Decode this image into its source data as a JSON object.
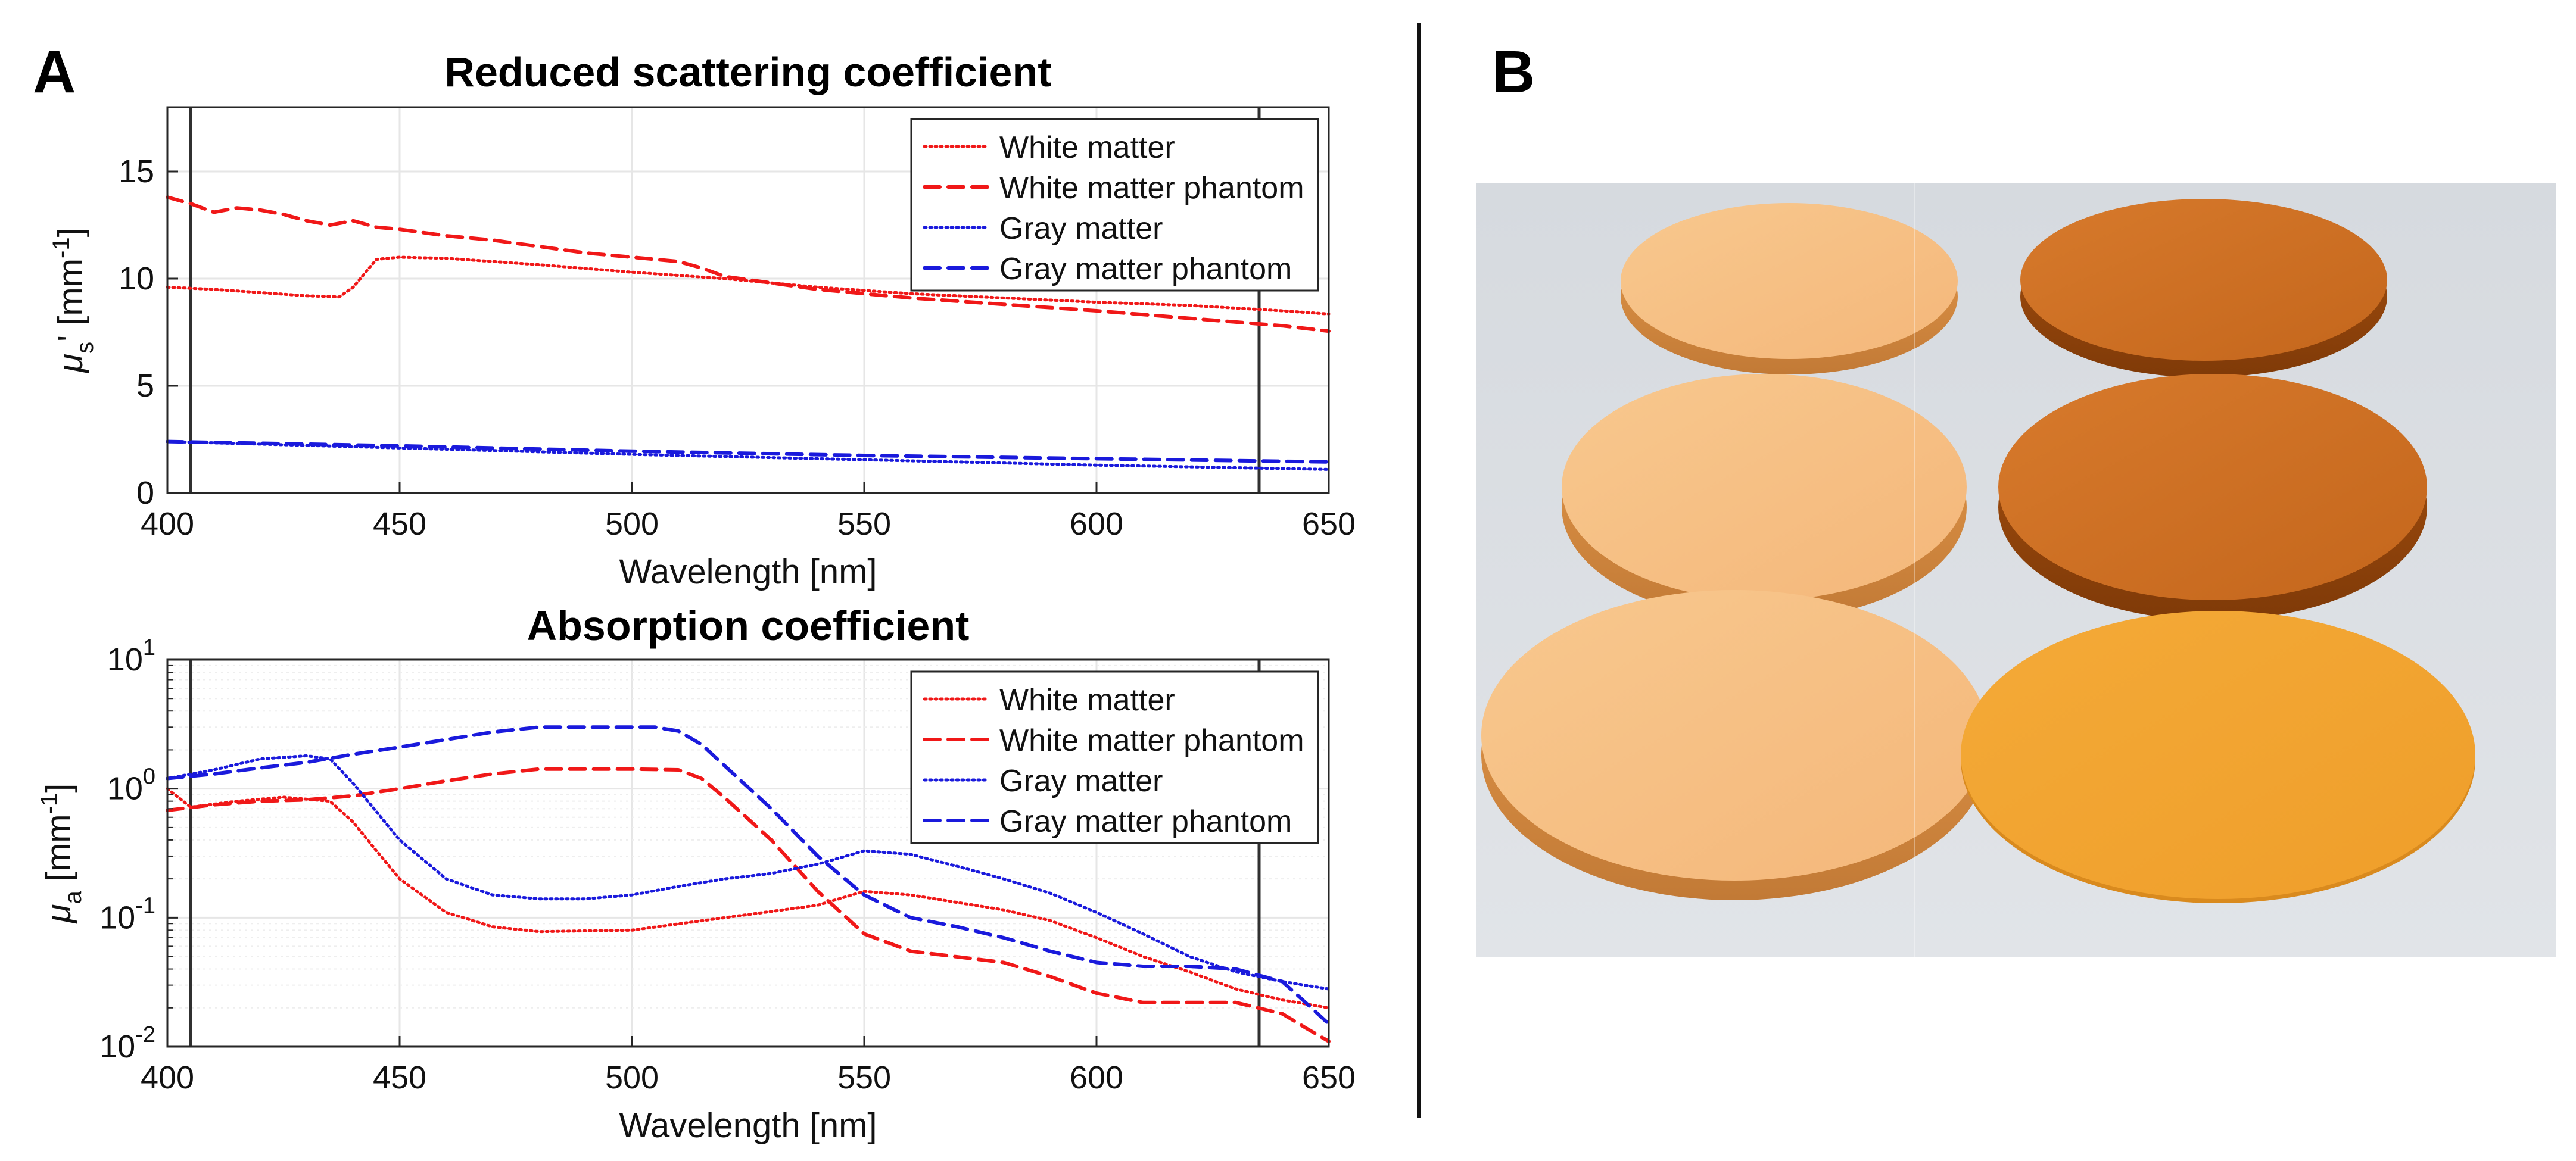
{
  "panels": {
    "a_label": "A",
    "b_label": "B"
  },
  "colors": {
    "red": "#f01818",
    "blue": "#1a1adc",
    "axis": "#262626",
    "grid": "#e6e6e6",
    "marker": "#303030"
  },
  "chart_data": [
    {
      "type": "line",
      "title": "Reduced scattering coefficient",
      "xlabel": "Wavelength [nm]",
      "ylabel_main": "μ",
      "ylabel_sub": "s",
      "ylabel_rest": "' [mm",
      "ylabel_sup": "-1",
      "ylabel_end": "]",
      "xlim": [
        400,
        650
      ],
      "ylim": [
        0,
        18
      ],
      "yscale": "linear",
      "xticks": [
        400,
        450,
        500,
        550,
        600,
        650
      ],
      "xtick_labels": [
        "400",
        "450",
        "500",
        "550",
        "600",
        "650"
      ],
      "yticks": [
        0,
        5,
        10,
        15
      ],
      "ytick_labels": [
        "0",
        "5",
        "10",
        "15"
      ],
      "grid": true,
      "legend_position": "top-right",
      "vertical_markers": [
        405,
        635
      ],
      "series": [
        {
          "name": "White matter",
          "color": "red",
          "style": "dotted",
          "x": [
            400,
            410,
            420,
            430,
            437,
            440,
            445,
            450,
            460,
            480,
            500,
            520,
            540,
            560,
            580,
            600,
            620,
            640,
            650
          ],
          "values": [
            9.6,
            9.5,
            9.35,
            9.2,
            9.15,
            9.6,
            10.9,
            11.0,
            10.95,
            10.65,
            10.3,
            10.0,
            9.6,
            9.3,
            9.1,
            8.9,
            8.75,
            8.5,
            8.35
          ]
        },
        {
          "name": "White matter phantom",
          "color": "red",
          "style": "dashed",
          "x": [
            400,
            405,
            410,
            415,
            420,
            425,
            430,
            435,
            440,
            445,
            450,
            460,
            470,
            480,
            490,
            500,
            510,
            515,
            520,
            530,
            540,
            550,
            560,
            580,
            600,
            620,
            640,
            650
          ],
          "values": [
            13.8,
            13.5,
            13.1,
            13.3,
            13.2,
            13.0,
            12.7,
            12.5,
            12.7,
            12.4,
            12.3,
            12.0,
            11.8,
            11.5,
            11.2,
            11.0,
            10.8,
            10.5,
            10.1,
            9.8,
            9.5,
            9.3,
            9.1,
            8.8,
            8.5,
            8.15,
            7.8,
            7.55
          ]
        },
        {
          "name": "Gray matter",
          "color": "blue",
          "style": "dotted",
          "x": [
            400,
            450,
            500,
            550,
            600,
            650
          ],
          "values": [
            2.4,
            2.1,
            1.8,
            1.55,
            1.3,
            1.1
          ]
        },
        {
          "name": "Gray matter phantom",
          "color": "blue",
          "style": "dashed",
          "x": [
            400,
            450,
            500,
            550,
            600,
            650
          ],
          "values": [
            2.4,
            2.2,
            1.95,
            1.75,
            1.6,
            1.45
          ]
        }
      ]
    },
    {
      "type": "line",
      "title": "Absorption coefficient",
      "xlabel": "Wavelength [nm]",
      "ylabel_main": "μ",
      "ylabel_sub": "a",
      "ylabel_rest": " [mm",
      "ylabel_sup": "-1",
      "ylabel_end": "]",
      "xlim": [
        400,
        650
      ],
      "ylim": [
        0.01,
        10
      ],
      "yscale": "log",
      "xticks": [
        400,
        450,
        500,
        550,
        600,
        650
      ],
      "xtick_labels": [
        "400",
        "450",
        "500",
        "550",
        "600",
        "650"
      ],
      "yticks": [
        0.01,
        0.1,
        1,
        10
      ],
      "ytick_base": "10",
      "ytick_exponents": [
        "-2",
        "-1",
        "0",
        "1"
      ],
      "grid": true,
      "legend_position": "top-right",
      "vertical_markers": [
        405,
        635
      ],
      "series": [
        {
          "name": "White matter",
          "color": "red",
          "style": "dotted",
          "x": [
            400,
            405,
            415,
            425,
            435,
            440,
            445,
            450,
            460,
            470,
            480,
            500,
            520,
            540,
            550,
            560,
            580,
            590,
            600,
            610,
            620,
            630,
            640,
            650
          ],
          "values": [
            1.0,
            0.72,
            0.8,
            0.86,
            0.8,
            0.55,
            0.33,
            0.2,
            0.11,
            0.085,
            0.078,
            0.08,
            0.1,
            0.125,
            0.16,
            0.15,
            0.115,
            0.095,
            0.07,
            0.05,
            0.038,
            0.028,
            0.023,
            0.02
          ]
        },
        {
          "name": "White matter phantom",
          "color": "red",
          "style": "dashed",
          "x": [
            400,
            410,
            420,
            430,
            440,
            450,
            460,
            470,
            480,
            490,
            500,
            510,
            515,
            520,
            530,
            540,
            550,
            560,
            580,
            590,
            600,
            610,
            620,
            630,
            640,
            645,
            650
          ],
          "values": [
            0.68,
            0.75,
            0.8,
            0.82,
            0.88,
            1.0,
            1.15,
            1.3,
            1.42,
            1.42,
            1.42,
            1.4,
            1.2,
            0.85,
            0.4,
            0.16,
            0.075,
            0.055,
            0.045,
            0.035,
            0.026,
            0.022,
            0.022,
            0.022,
            0.018,
            0.014,
            0.011
          ]
        },
        {
          "name": "Gray matter",
          "color": "blue",
          "style": "dotted",
          "x": [
            400,
            410,
            420,
            430,
            435,
            440,
            450,
            460,
            470,
            480,
            490,
            500,
            510,
            520,
            530,
            540,
            550,
            560,
            570,
            580,
            590,
            600,
            610,
            620,
            630,
            640,
            650
          ],
          "values": [
            1.2,
            1.4,
            1.7,
            1.8,
            1.7,
            1.1,
            0.4,
            0.2,
            0.15,
            0.14,
            0.14,
            0.15,
            0.175,
            0.2,
            0.22,
            0.26,
            0.33,
            0.31,
            0.25,
            0.2,
            0.155,
            0.11,
            0.075,
            0.05,
            0.038,
            0.032,
            0.028
          ]
        },
        {
          "name": "Gray matter phantom",
          "color": "blue",
          "style": "dashed",
          "x": [
            400,
            410,
            420,
            430,
            440,
            450,
            460,
            470,
            480,
            490,
            500,
            505,
            510,
            515,
            520,
            530,
            540,
            550,
            560,
            570,
            580,
            590,
            600,
            610,
            620,
            630,
            640,
            645,
            650
          ],
          "values": [
            1.2,
            1.3,
            1.45,
            1.6,
            1.85,
            2.1,
            2.4,
            2.75,
            3.0,
            3.0,
            3.0,
            3.0,
            2.8,
            2.2,
            1.5,
            0.7,
            0.3,
            0.15,
            0.1,
            0.085,
            0.07,
            0.055,
            0.045,
            0.042,
            0.042,
            0.04,
            0.032,
            0.022,
            0.015
          ]
        }
      ]
    }
  ]
}
